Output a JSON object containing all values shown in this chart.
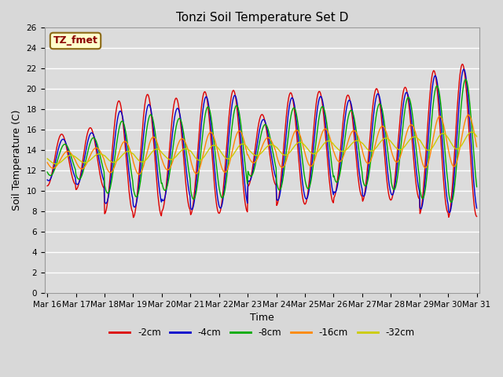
{
  "title": "Tonzi Soil Temperature Set D",
  "xlabel": "Time",
  "ylabel": "Soil Temperature (C)",
  "annotation_text": "TZ_fmet",
  "annotation_color": "#8B0000",
  "annotation_bg": "#FFFFCC",
  "annotation_border": "#8B6914",
  "ylim": [
    0,
    26
  ],
  "yticks": [
    0,
    2,
    4,
    6,
    8,
    10,
    12,
    14,
    16,
    18,
    20,
    22,
    24,
    26
  ],
  "xtick_labels": [
    "Mar 16",
    "Mar 17",
    "Mar 18",
    "Mar 19",
    "Mar 20",
    "Mar 21",
    "Mar 22",
    "Mar 23",
    "Mar 24",
    "Mar 25",
    "Mar 26",
    "Mar 27",
    "Mar 28",
    "Mar 29",
    "Mar 30",
    "Mar 31"
  ],
  "series_colors": {
    "-2cm": "#DD0000",
    "-4cm": "#0000CC",
    "-8cm": "#00AA00",
    "-16cm": "#FF8800",
    "-32cm": "#CCCC00"
  },
  "fig_bg": "#D8D8D8",
  "plot_bg": "#DCDCDC",
  "grid_color": "#FFFFFF",
  "title_fontsize": 11,
  "axis_label_fontsize": 9,
  "tick_fontsize": 7.5
}
